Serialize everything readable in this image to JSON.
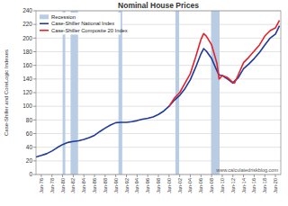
{
  "chart_data": {
    "type": "line",
    "title": "Nominal House Prices",
    "y_label": "Case-Shiller and CoreLogic Indexes",
    "annotations": [
      "www.calculatedriskblog.com"
    ],
    "x": [
      1975,
      1976,
      1977,
      1978,
      1979,
      1980,
      1981,
      1982,
      1983,
      1984,
      1985,
      1986,
      1987,
      1988,
      1989,
      1990,
      1991,
      1992,
      1993,
      1994,
      1995,
      1996,
      1997,
      1998,
      1999,
      2000,
      2001,
      2002,
      2003,
      2004,
      2005,
      2006,
      2006.5,
      2007,
      2008,
      2009,
      2009.4,
      2010,
      2011,
      2012,
      2012.3,
      2013,
      2014,
      2015,
      2016,
      2017,
      2018,
      2019,
      2020,
      2020.75
    ],
    "series": [
      {
        "name": "Case-Shiller National Index",
        "color": "#1f3a9a",
        "values": [
          25.7,
          28.0,
          30.5,
          34.5,
          39.5,
          44.0,
          47.0,
          48.5,
          49.5,
          51.5,
          54.0,
          57.5,
          63.0,
          68.0,
          72.5,
          76.0,
          76.5,
          76.5,
          77.5,
          79.0,
          81.0,
          82.5,
          84.5,
          88.0,
          93.0,
          100,
          109,
          116,
          126,
          139,
          157,
          177,
          184.6,
          181,
          170,
          152,
          146,
          145,
          140,
          134,
          137,
          142,
          155,
          162,
          170,
          179,
          190,
          200,
          206,
          218
        ]
      },
      {
        "name": "Case-Shiller Composite 20 Index",
        "color": "#e3232c",
        "values": [
          null,
          null,
          null,
          null,
          null,
          null,
          null,
          null,
          null,
          null,
          null,
          null,
          null,
          null,
          null,
          null,
          null,
          null,
          null,
          null,
          null,
          null,
          null,
          null,
          null,
          100,
          112,
          120,
          134,
          148,
          172,
          198,
          206.5,
          203,
          190,
          163,
          140,
          145,
          142,
          135,
          134,
          146,
          164,
          172,
          181,
          190,
          203,
          211,
          215,
          226
        ]
      }
    ],
    "recessions": {
      "name": "Recession",
      "color": "#b8cce4",
      "ranges": [
        [
          1980.0,
          1980.5
        ],
        [
          1981.5,
          1982.9
        ],
        [
          1990.5,
          1991.2
        ],
        [
          2001.2,
          2001.9
        ],
        [
          2007.9,
          2009.5
        ]
      ]
    },
    "xlim": [
      1975,
      2021
    ],
    "xticks": [
      {
        "value": 1976,
        "label": "Jan-76"
      },
      {
        "value": 1978,
        "label": "Jan-78"
      },
      {
        "value": 1980,
        "label": "Jan-80"
      },
      {
        "value": 1982,
        "label": "Jan-82"
      },
      {
        "value": 1984,
        "label": "Jan-84"
      },
      {
        "value": 1986,
        "label": "Jan-86"
      },
      {
        "value": 1988,
        "label": "Jan-88"
      },
      {
        "value": 1990,
        "label": "Jan-90"
      },
      {
        "value": 1992,
        "label": "Jan-92"
      },
      {
        "value": 1994,
        "label": "Jan-94"
      },
      {
        "value": 1996,
        "label": "Jan-96"
      },
      {
        "value": 1998,
        "label": "Jan-98"
      },
      {
        "value": 2000,
        "label": "Jan-00"
      },
      {
        "value": 2002,
        "label": "Jan-02"
      },
      {
        "value": 2004,
        "label": "Jan-04"
      },
      {
        "value": 2006,
        "label": "Jan-06"
      },
      {
        "value": 2008,
        "label": "Jan-08"
      },
      {
        "value": 2010,
        "label": "Jan-10"
      },
      {
        "value": 2012,
        "label": "Jan-12"
      },
      {
        "value": 2014,
        "label": "Jan-14"
      },
      {
        "value": 2016,
        "label": "Jan-16"
      },
      {
        "value": 2018,
        "label": "Jan-18"
      },
      {
        "value": 2020,
        "label": "Jan-20"
      }
    ],
    "ylim": [
      0,
      240
    ],
    "yticks": [
      0,
      20,
      40,
      60,
      80,
      100,
      120,
      140,
      160,
      180,
      200,
      220,
      240
    ],
    "grid": true,
    "legend": "top-left"
  }
}
